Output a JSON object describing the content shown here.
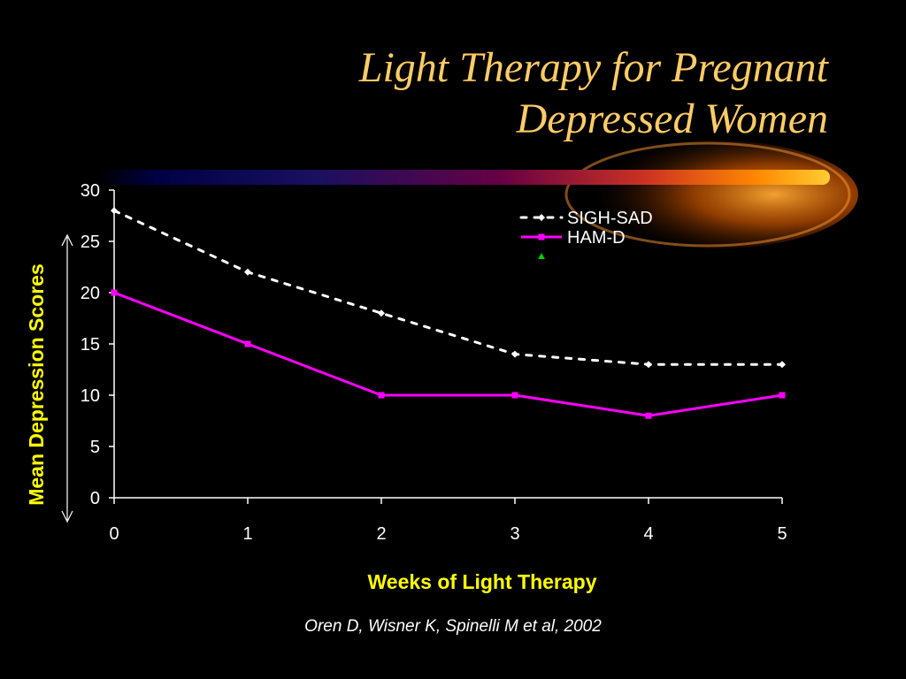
{
  "slide": {
    "title_line1": "Light Therapy for Pregnant",
    "title_line2": "Depressed Women",
    "citation": "Oren D, Wisner K, Spinelli M et al, 2002",
    "colors": {
      "background": "#000000",
      "title": "#ffcc66",
      "axis_label": "#ffff00",
      "sigh_sad": "#ffffff",
      "ham_d": "#ff00ff",
      "marker_extra": "#00cc00"
    }
  },
  "chart_data": {
    "type": "line",
    "x": [
      0,
      1,
      2,
      3,
      4,
      5
    ],
    "xlabel": "Weeks of Light Therapy",
    "ylabel": "Mean Depression Scores",
    "xlim": [
      0,
      5
    ],
    "ylim": [
      0,
      30
    ],
    "xticks": [
      "0",
      "1",
      "2",
      "3",
      "4",
      "5"
    ],
    "yticks": [
      "0",
      "5",
      "10",
      "15",
      "20",
      "25",
      "30"
    ],
    "grid": false,
    "legend_position": "top-right",
    "series": [
      {
        "name": "SIGH-SAD",
        "values": [
          28,
          22,
          18,
          14,
          13,
          13
        ],
        "style": "dotted",
        "color": "#ffffff"
      },
      {
        "name": "HAM-D",
        "values": [
          20,
          15,
          10,
          10,
          8,
          10
        ],
        "style": "solid",
        "color": "#ff00ff"
      }
    ]
  }
}
